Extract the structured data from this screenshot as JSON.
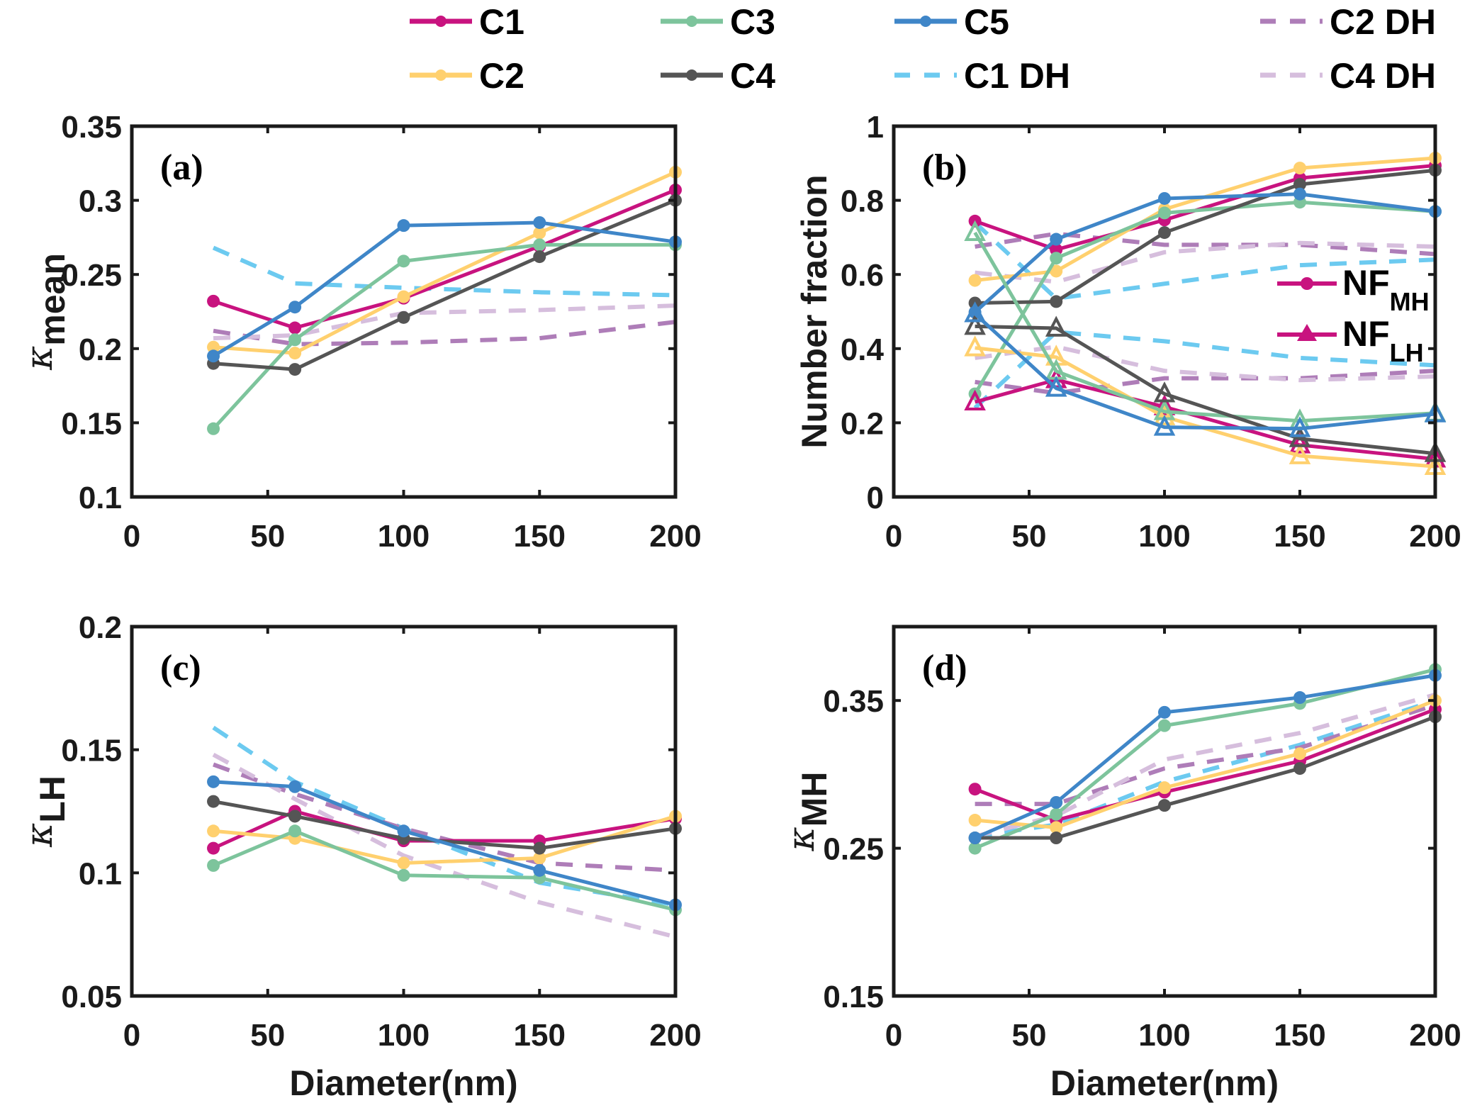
{
  "legend": {
    "items": [
      {
        "name": "C1",
        "color": "#C8137F",
        "style": "solid",
        "marker": "circle"
      },
      {
        "name": "C3",
        "color": "#7DC49C",
        "style": "solid",
        "marker": "circle"
      },
      {
        "name": "C5",
        "color": "#3F86C8",
        "style": "solid",
        "marker": "circle"
      },
      {
        "name": "C2 DH",
        "color": "#AE7DB8",
        "style": "dashed",
        "marker": "none"
      },
      {
        "name": "C2",
        "color": "#FFD06E",
        "style": "solid",
        "marker": "circle"
      },
      {
        "name": "C4",
        "color": "#555555",
        "style": "solid",
        "marker": "circle"
      },
      {
        "name": "C1 DH",
        "color": "#6CCAF0",
        "style": "dashed",
        "marker": "none"
      },
      {
        "name": "C4 DH",
        "color": "#D6BEDD",
        "style": "dashed",
        "marker": "none"
      }
    ]
  },
  "chart_data": [
    {
      "type": "line",
      "panel": "(a)",
      "xlabel": "",
      "ylabel": "κ",
      "ylabel_sub": "mean",
      "xlim": [
        0,
        200
      ],
      "ylim": [
        0.1,
        0.35
      ],
      "xticks": [
        "0",
        "50",
        "100",
        "150",
        "200"
      ],
      "yticks": [
        "0.1",
        "0.15",
        "0.2",
        "0.25",
        "0.3",
        "0.35"
      ],
      "x": [
        30,
        60,
        100,
        150,
        200
      ],
      "grid": false,
      "series": [
        {
          "name": "C1",
          "values": [
            0.232,
            0.214,
            0.234,
            0.269,
            0.307
          ]
        },
        {
          "name": "C2",
          "values": [
            0.201,
            0.197,
            0.235,
            0.278,
            0.319
          ]
        },
        {
          "name": "C3",
          "values": [
            0.146,
            0.206,
            0.259,
            0.27,
            0.27
          ]
        },
        {
          "name": "C4",
          "values": [
            0.19,
            0.186,
            0.221,
            0.262,
            0.3
          ]
        },
        {
          "name": "C5",
          "values": [
            0.195,
            0.228,
            0.283,
            0.285,
            0.272
          ]
        },
        {
          "name": "C1 DH",
          "values": [
            0.268,
            0.244,
            0.241,
            0.238,
            0.236
          ]
        },
        {
          "name": "C2 DH",
          "values": [
            0.212,
            0.203,
            0.204,
            0.207,
            0.218
          ]
        },
        {
          "name": "C4 DH",
          "values": [
            0.207,
            0.209,
            0.224,
            0.226,
            0.229
          ]
        }
      ]
    },
    {
      "type": "line",
      "panel": "(b)",
      "xlabel": "",
      "ylabel": "Number fraction",
      "xlim": [
        0,
        200
      ],
      "ylim": [
        0,
        1
      ],
      "xticks": [
        "0",
        "50",
        "100",
        "150",
        "200"
      ],
      "yticks": [
        "0",
        "0.2",
        "0.4",
        "0.6",
        "0.8",
        "1"
      ],
      "x": [
        30,
        60,
        100,
        150,
        200
      ],
      "grid": false,
      "inner_legend": {
        "placement": "right",
        "items": [
          {
            "label": "NF",
            "sub": "MH",
            "marker": "circle",
            "color": "#C8137F"
          },
          {
            "label": "NF",
            "sub": "LH",
            "marker": "triangle",
            "color": "#C8137F"
          }
        ]
      },
      "series": [
        {
          "name": "C1 NF_MH",
          "values": [
            0.744,
            0.667,
            0.747,
            0.86,
            0.894
          ]
        },
        {
          "name": "C2 NF_MH",
          "values": [
            0.584,
            0.609,
            0.776,
            0.887,
            0.914
          ]
        },
        {
          "name": "C3 NF_MH",
          "values": [
            0.278,
            0.644,
            0.766,
            0.795,
            0.77
          ]
        },
        {
          "name": "C4 NF_MH",
          "values": [
            0.523,
            0.527,
            0.713,
            0.843,
            0.881
          ]
        },
        {
          "name": "C5 NF_MH",
          "values": [
            0.498,
            0.695,
            0.805,
            0.817,
            0.77
          ]
        },
        {
          "name": "C1 NF_LH",
          "values": [
            0.256,
            0.316,
            0.243,
            0.14,
            0.102
          ]
        },
        {
          "name": "C2 NF_LH",
          "values": [
            0.402,
            0.377,
            0.216,
            0.111,
            0.082
          ]
        },
        {
          "name": "C3 NF_LH",
          "values": [
            0.713,
            0.339,
            0.23,
            0.205,
            0.226
          ]
        },
        {
          "name": "C4 NF_LH",
          "values": [
            0.46,
            0.455,
            0.278,
            0.157,
            0.117
          ]
        },
        {
          "name": "C5 NF_LH",
          "values": [
            0.494,
            0.293,
            0.188,
            0.184,
            0.224
          ]
        },
        {
          "name": "C1 DH NF_MH",
          "values": [
            0.74,
            0.535,
            0.575,
            0.625,
            0.64
          ]
        },
        {
          "name": "C1 DH NF_LH",
          "values": [
            0.24,
            0.445,
            0.42,
            0.375,
            0.355
          ]
        },
        {
          "name": "C2 DH NF_MH",
          "values": [
            0.675,
            0.71,
            0.68,
            0.68,
            0.655
          ]
        },
        {
          "name": "C2 DH NF_LH",
          "values": [
            0.31,
            0.28,
            0.32,
            0.32,
            0.34
          ]
        },
        {
          "name": "C4 DH NF_MH",
          "values": [
            0.605,
            0.58,
            0.66,
            0.685,
            0.675
          ]
        },
        {
          "name": "C4 DH NF_LH",
          "values": [
            0.375,
            0.405,
            0.34,
            0.315,
            0.325
          ]
        }
      ]
    },
    {
      "type": "line",
      "panel": "(c)",
      "xlabel": "Diameter(nm)",
      "ylabel": "κ",
      "ylabel_sub": "LH",
      "xlim": [
        0,
        200
      ],
      "ylim": [
        0.05,
        0.2
      ],
      "xticks": [
        "0",
        "50",
        "100",
        "150",
        "200"
      ],
      "yticks": [
        "0.05",
        "0.1",
        "0.15",
        "0.2"
      ],
      "x": [
        30,
        60,
        100,
        150,
        200
      ],
      "grid": false,
      "series": [
        {
          "name": "C1",
          "values": [
            0.11,
            0.125,
            0.113,
            0.113,
            0.122
          ]
        },
        {
          "name": "C2",
          "values": [
            0.117,
            0.114,
            0.104,
            0.106,
            0.123
          ]
        },
        {
          "name": "C3",
          "values": [
            0.103,
            0.117,
            0.099,
            0.098,
            0.085
          ]
        },
        {
          "name": "C4",
          "values": [
            0.129,
            0.123,
            0.114,
            0.11,
            0.118
          ]
        },
        {
          "name": "C5",
          "values": [
            0.137,
            0.135,
            0.117,
            0.101,
            0.087
          ]
        },
        {
          "name": "C1 DH",
          "values": [
            0.159,
            0.137,
            0.118,
            0.096,
            0.087
          ]
        },
        {
          "name": "C2 DH",
          "values": [
            0.144,
            0.132,
            0.118,
            0.104,
            0.101
          ]
        },
        {
          "name": "C4 DH",
          "values": [
            0.148,
            0.13,
            0.107,
            0.088,
            0.074
          ]
        }
      ]
    },
    {
      "type": "line",
      "panel": "(d)",
      "xlabel": "Diameter(nm)",
      "ylabel": "κ",
      "ylabel_sub": "MH",
      "xlim": [
        0,
        200
      ],
      "ylim": [
        0.15,
        0.4
      ],
      "xticks": [
        "0",
        "50",
        "100",
        "150",
        "200"
      ],
      "yticks": [
        "0.15",
        "0.25",
        "0.35"
      ],
      "ytick_values": [
        0.15,
        0.25,
        0.35
      ],
      "x": [
        30,
        60,
        100,
        150,
        200
      ],
      "grid": false,
      "series": [
        {
          "name": "C1",
          "values": [
            0.29,
            0.269,
            0.288,
            0.309,
            0.344
          ]
        },
        {
          "name": "C2",
          "values": [
            0.269,
            0.264,
            0.291,
            0.314,
            0.35
          ]
        },
        {
          "name": "C3",
          "values": [
            0.25,
            0.273,
            0.333,
            0.348,
            0.371
          ]
        },
        {
          "name": "C4",
          "values": [
            0.257,
            0.257,
            0.279,
            0.304,
            0.339
          ]
        },
        {
          "name": "C5",
          "values": [
            0.257,
            0.281,
            0.342,
            0.352,
            0.367
          ]
        },
        {
          "name": "C1 DH",
          "values": [
            0.258,
            0.266,
            0.295,
            0.32,
            0.35
          ]
        },
        {
          "name": "C2 DH",
          "values": [
            0.28,
            0.28,
            0.304,
            0.318,
            0.347
          ]
        },
        {
          "name": "C4 DH",
          "values": [
            0.258,
            0.272,
            0.31,
            0.328,
            0.354
          ]
        }
      ]
    }
  ]
}
